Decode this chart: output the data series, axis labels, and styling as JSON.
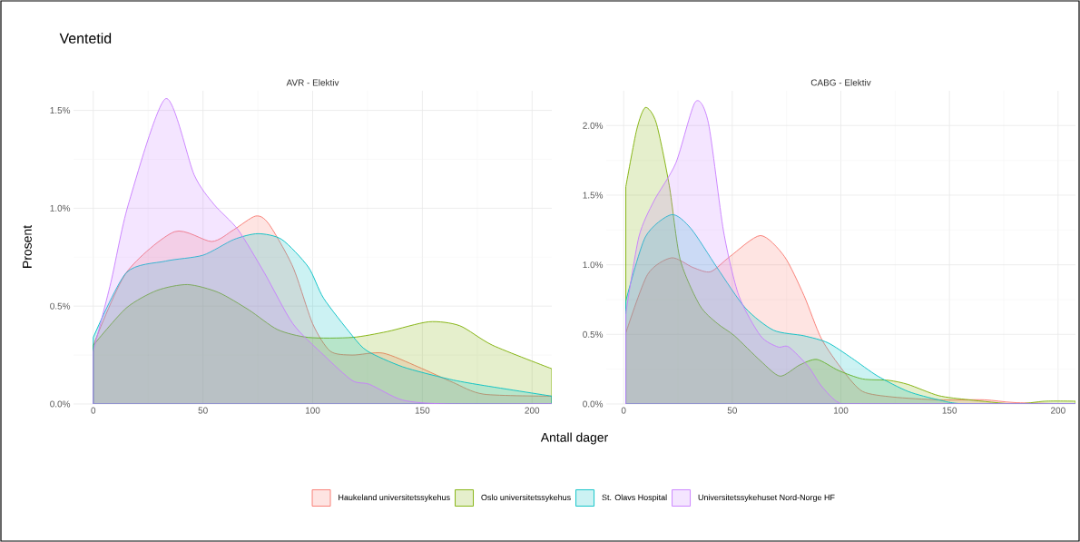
{
  "chart_data": [
    {
      "type": "area",
      "title": "Ventetid",
      "subtitle": "AVR - Elektiv",
      "xlabel": "Antall dager",
      "ylabel": "Prosent",
      "legend": "bottom",
      "grid": true,
      "xlim": [
        -9,
        209
      ],
      "ylim": [
        0,
        1.6
      ],
      "xticks": [
        0,
        50,
        100,
        150,
        200
      ],
      "yticks": [
        {
          "value": 0,
          "label": "0.0%"
        },
        {
          "value": 0.5,
          "label": "0.5%"
        },
        {
          "value": 1,
          "label": "1.0%"
        },
        {
          "value": 1.5,
          "label": "1.5%"
        }
      ],
      "series": [
        {
          "name": "Haukeland universitetssykehus",
          "color": "#f8766d",
          "x": [
            0,
            15,
            37,
            54,
            64,
            74,
            80,
            91,
            100,
            108,
            118,
            132,
            148,
            164,
            178,
            209
          ],
          "values": [
            0.3,
            0.67,
            0.88,
            0.83,
            0.89,
            0.96,
            0.92,
            0.7,
            0.41,
            0.27,
            0.25,
            0.26,
            0.19,
            0.11,
            0.05,
            0.04
          ]
        },
        {
          "name": "Oslo universitetssykehus",
          "color": "#7cae00",
          "x": [
            0,
            15,
            29,
            43,
            57,
            71,
            84,
            98,
            118,
            134,
            153,
            167,
            182,
            209
          ],
          "values": [
            0.3,
            0.49,
            0.58,
            0.61,
            0.57,
            0.48,
            0.38,
            0.34,
            0.34,
            0.37,
            0.42,
            0.4,
            0.3,
            0.18
          ]
        },
        {
          "name": "St. Olavs Hospital",
          "color": "#00bfc4",
          "x": [
            0,
            15,
            33,
            50,
            64,
            75,
            86,
            98,
            105,
            118,
            125,
            141,
            161,
            175,
            209
          ],
          "values": [
            0.34,
            0.67,
            0.73,
            0.76,
            0.84,
            0.87,
            0.84,
            0.7,
            0.54,
            0.35,
            0.27,
            0.19,
            0.13,
            0.1,
            0.04
          ]
        },
        {
          "name": "Universitetssykehuset Nord-Norge HF",
          "color": "#c77cff",
          "x": [
            0,
            8,
            16,
            33,
            46,
            55,
            66,
            78,
            91,
            105,
            118,
            126,
            141,
            161,
            209
          ],
          "values": [
            0.27,
            0.62,
            1.02,
            1.56,
            1.17,
            1.02,
            0.89,
            0.67,
            0.41,
            0.25,
            0.12,
            0.1,
            0.02,
            0,
            0
          ]
        }
      ]
    },
    {
      "type": "area",
      "subtitle": "CABG - Elektiv",
      "grid": true,
      "xlim": [
        -8,
        208
      ],
      "ylim": [
        0,
        2.25
      ],
      "xticks": [
        0,
        50,
        100,
        150,
        200
      ],
      "yticks": [
        {
          "value": 0,
          "label": "0.0%"
        },
        {
          "value": 0.5,
          "label": "0.5%"
        },
        {
          "value": 1,
          "label": "1.0%"
        },
        {
          "value": 1.5,
          "label": "1.5%"
        },
        {
          "value": 2,
          "label": "2.0%"
        }
      ],
      "series": [
        {
          "color": "#f8766d",
          "x": [
            1,
            11,
            22,
            32,
            40,
            49,
            63,
            74,
            83,
            91,
            101,
            110,
            124,
            145,
            166,
            180,
            208
          ],
          "values": [
            0.51,
            0.93,
            1.05,
            0.98,
            0.95,
            1.06,
            1.21,
            1.06,
            0.78,
            0.47,
            0.24,
            0.09,
            0.05,
            0.03,
            0.03,
            0.01,
            0
          ]
        },
        {
          "color": "#7cae00",
          "x": [
            1,
            6,
            10,
            15,
            21,
            26,
            35,
            43,
            51,
            63,
            72,
            81,
            89,
            99,
            110,
            122,
            131,
            145,
            159,
            180,
            194,
            208
          ],
          "values": [
            1.56,
            1.97,
            2.13,
            2.02,
            1.57,
            1.04,
            0.71,
            0.58,
            0.49,
            0.31,
            0.2,
            0.28,
            0.32,
            0.24,
            0.18,
            0.17,
            0.14,
            0.06,
            0.03,
            0,
            0.02,
            0.02
          ]
        },
        {
          "color": "#00bfc4",
          "x": [
            1,
            10,
            22,
            31,
            43,
            56,
            69,
            83,
            94,
            105,
            117,
            131,
            145,
            158,
            208
          ],
          "values": [
            0.74,
            1.2,
            1.36,
            1.26,
            0.98,
            0.69,
            0.53,
            0.49,
            0.44,
            0.33,
            0.2,
            0.09,
            0.03,
            0,
            0
          ]
        },
        {
          "color": "#c77cff",
          "x": [
            1,
            7,
            14,
            24,
            33,
            39,
            46,
            53,
            63,
            71,
            76,
            85,
            91,
            99,
            110,
            208
          ],
          "values": [
            0.65,
            1.2,
            1.46,
            1.73,
            2.17,
            2.02,
            1.24,
            0.78,
            0.49,
            0.41,
            0.41,
            0.27,
            0.13,
            0.01,
            0,
            0
          ]
        }
      ]
    }
  ]
}
